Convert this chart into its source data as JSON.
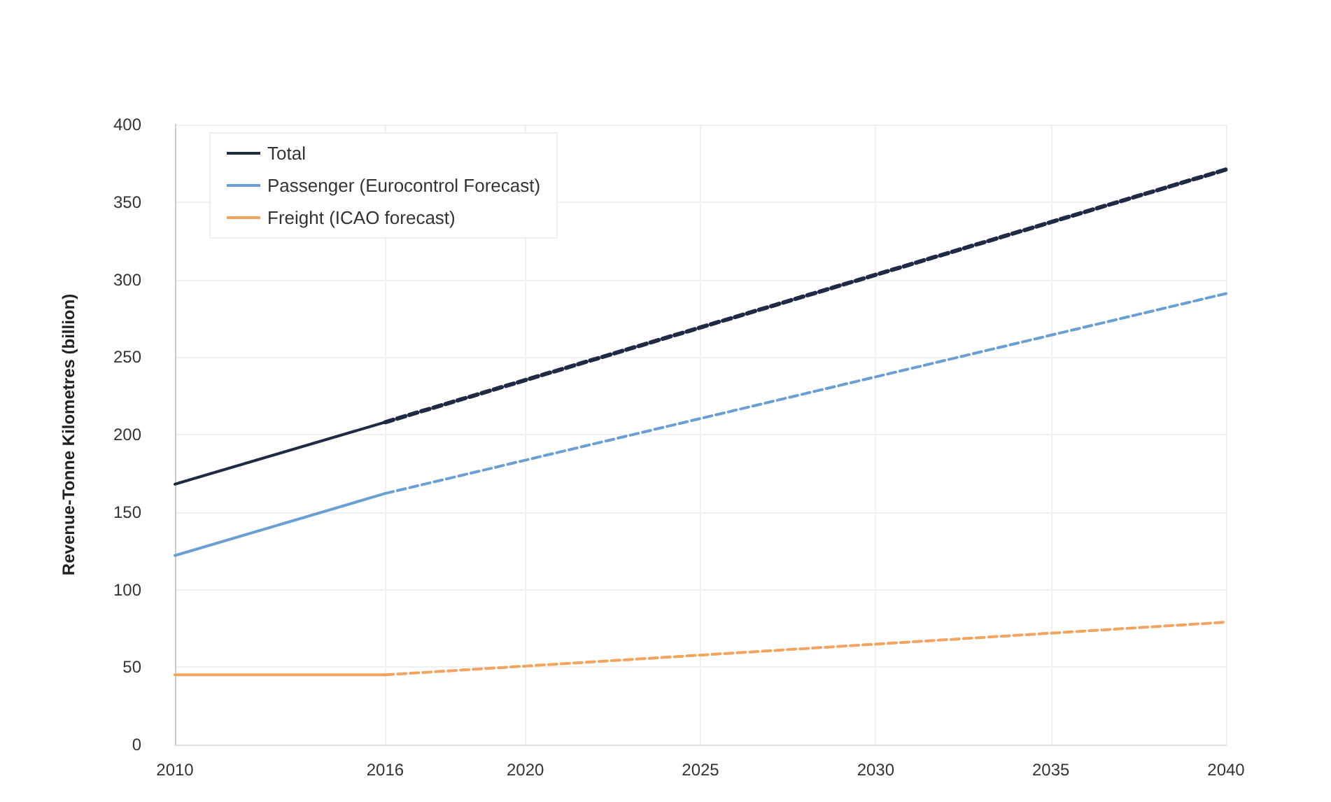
{
  "chart_data": {
    "type": "line",
    "ylabel": "Revenue-Tonne Kilometres (billion)",
    "series": [
      {
        "name": "Total",
        "color": "#1f2a44",
        "x": [
          2010,
          2016
        ],
        "values": [
          168,
          208
        ],
        "line_style": "solid"
      },
      {
        "name": "Passenger (Eurocontrol Forecast)",
        "color": "#6a9fd4",
        "x": [
          2010,
          2016
        ],
        "values": [
          122,
          162
        ],
        "line_style": "solid"
      },
      {
        "name": "Freight (ICAO forecast)",
        "color": "#f2a35e",
        "x": [
          2010,
          2016
        ],
        "values": [
          45,
          45
        ],
        "line_style": "solid"
      },
      {
        "color": "#1f2a44",
        "x": [
          2016,
          2040
        ],
        "values": [
          208,
          371
        ],
        "line_style": "dashed"
      },
      {
        "color": "#6a9fd4",
        "x": [
          2016,
          2040
        ],
        "values": [
          162,
          291
        ],
        "line_style": "dashed"
      },
      {
        "color": "#f2a35e",
        "x": [
          2016,
          2040
        ],
        "values": [
          45,
          79
        ],
        "line_style": "dashed"
      }
    ],
    "xlim": [
      2010,
      2040
    ],
    "xticks": [
      2010,
      2016,
      2020,
      2025,
      2030,
      2035,
      2040
    ],
    "ylim": [
      0,
      400
    ],
    "yticks": [
      0,
      50,
      100,
      150,
      200,
      250,
      300,
      350,
      400
    ],
    "grid": true,
    "legend": "top left",
    "marker": "none"
  }
}
